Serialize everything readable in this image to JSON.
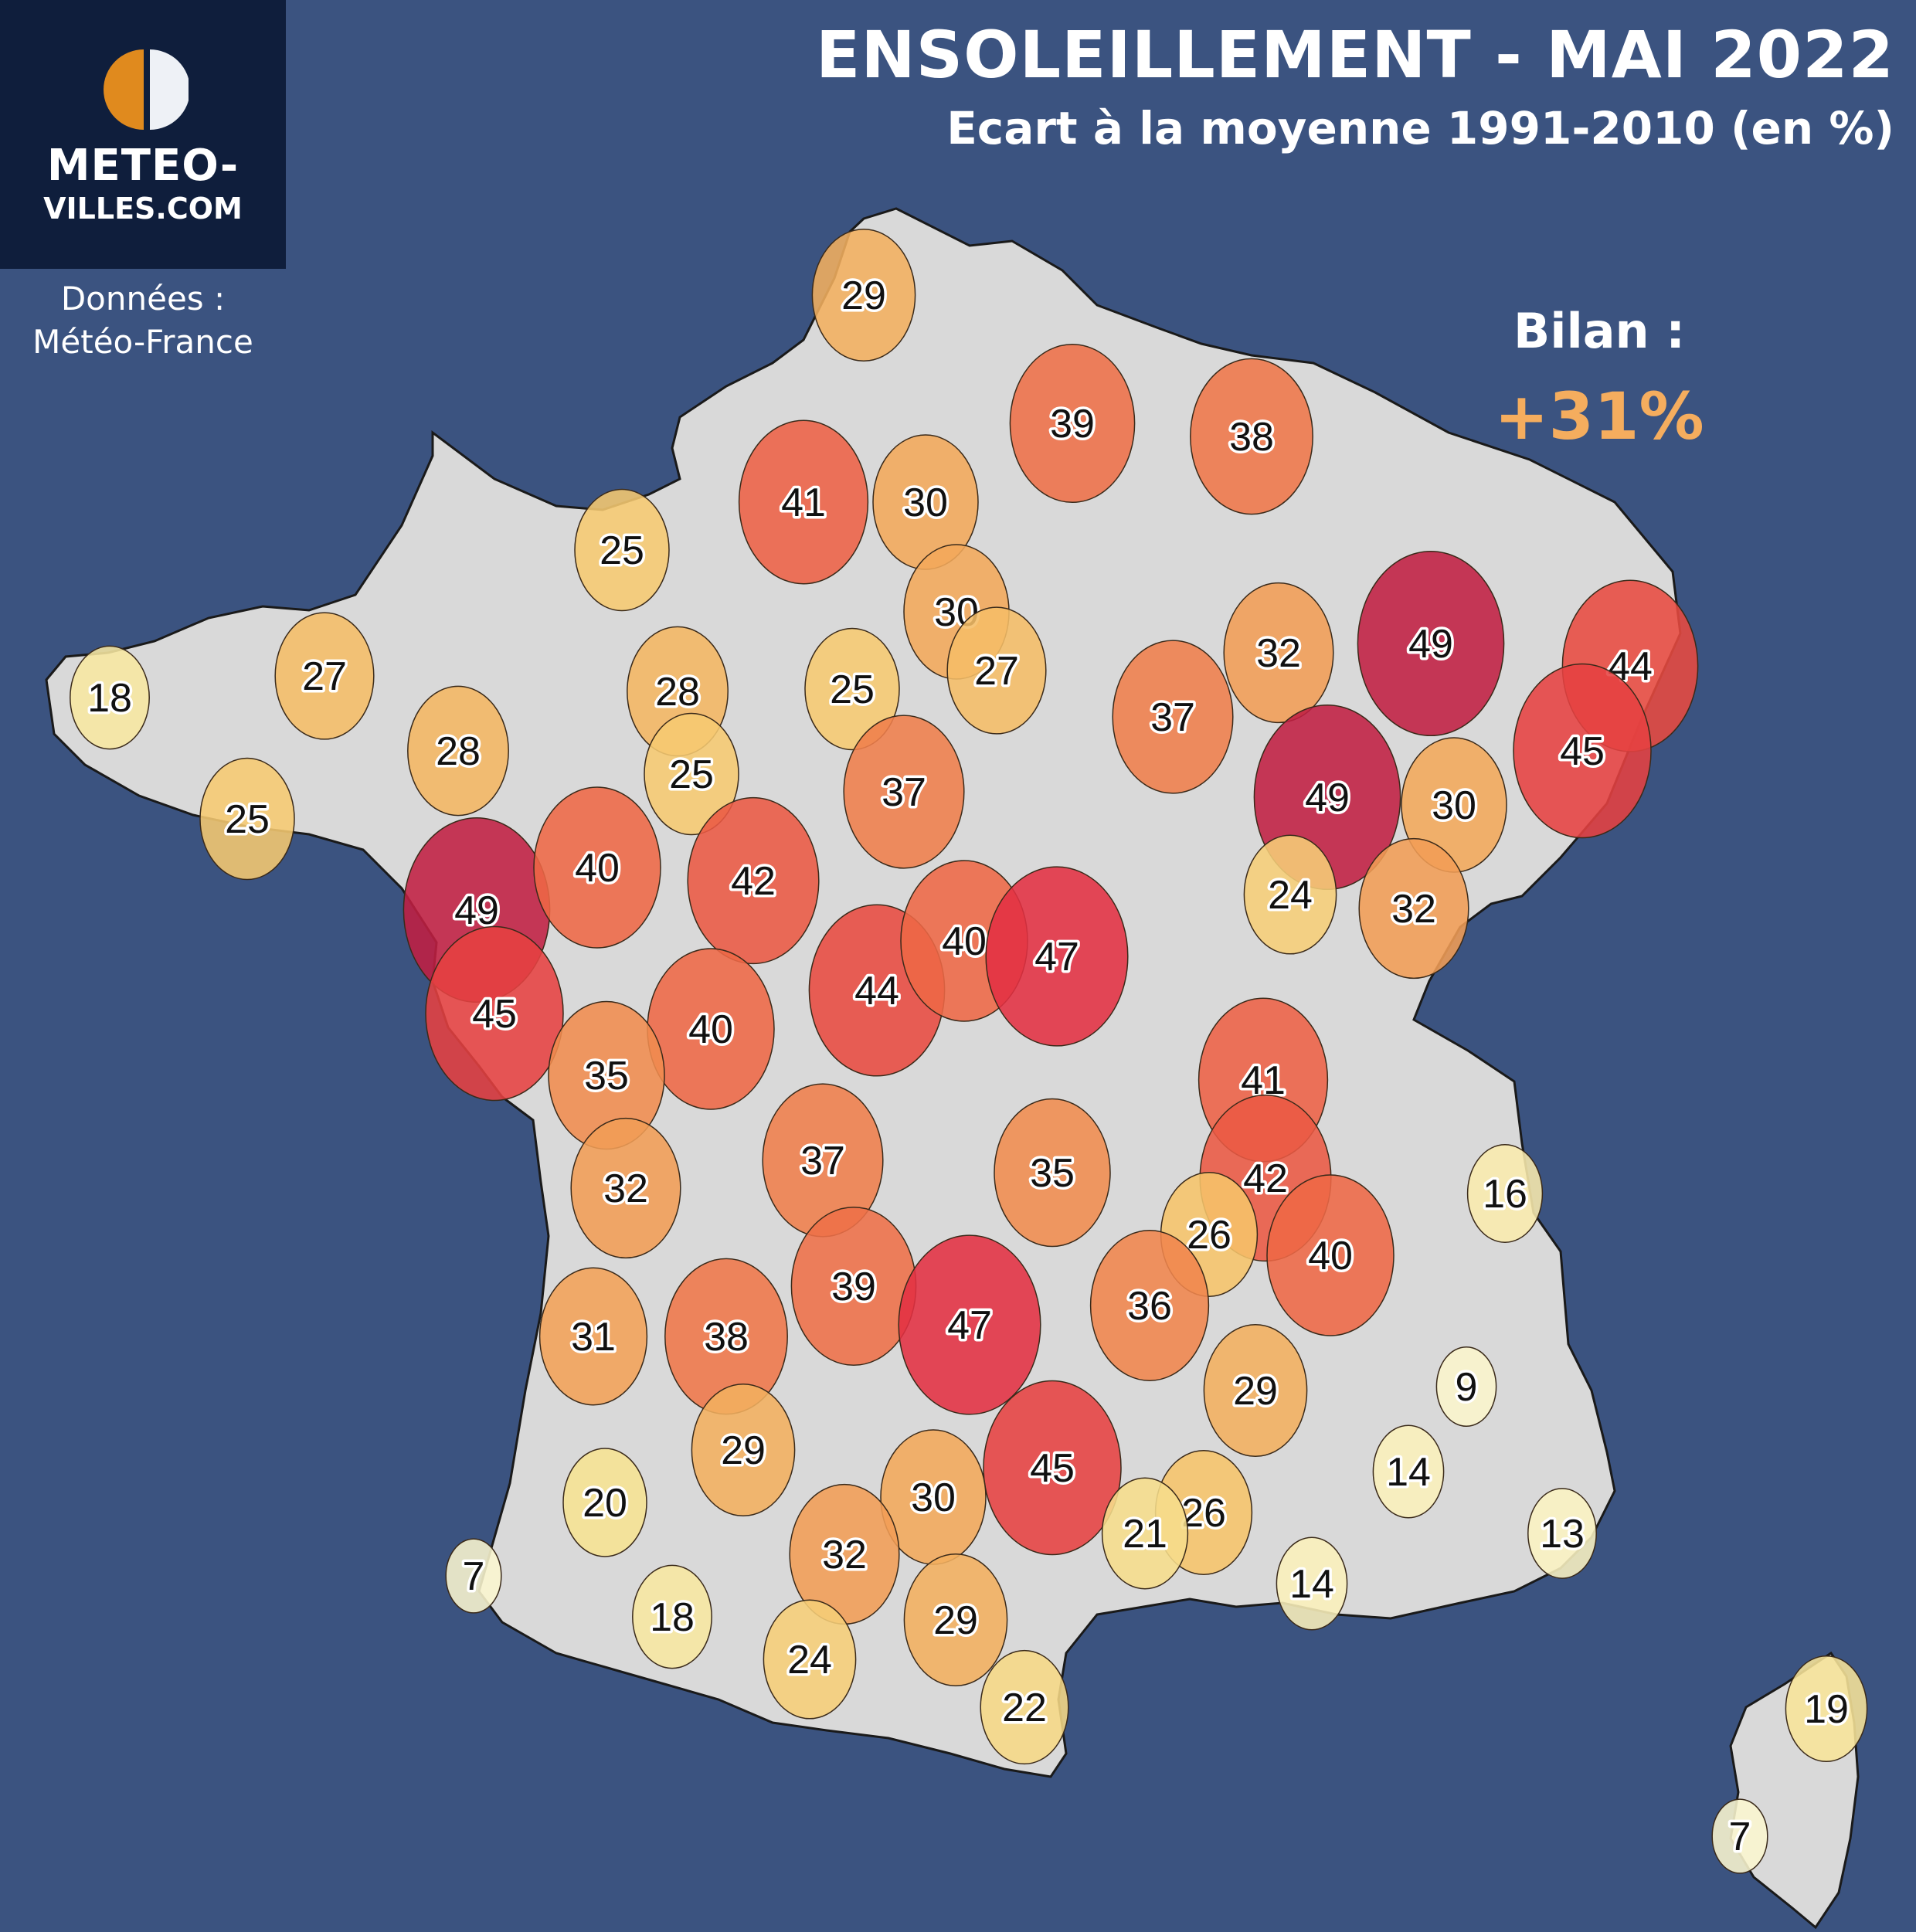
{
  "header": {
    "title": "ENSOLEILLEMENT - MAI 2022",
    "subtitle": "Ecart à la moyenne 1991-2010 (en %)"
  },
  "logo": {
    "line1": "METEO-",
    "line2": "VILLES.COM",
    "icon": "half-sun-icon",
    "colors": {
      "orange": "#e08a1e",
      "light": "#eef1f6"
    }
  },
  "source": {
    "label": "Données :",
    "name": "Météo-France"
  },
  "summary": {
    "label": "Bilan :",
    "value": "+31%"
  },
  "colors": {
    "sea": "#3b5380",
    "land": "#d9d9d9",
    "border": "#1a1a1a",
    "scale": {
      "0": "#fbf8d8",
      "20": "#f6e292",
      "28": "#f3b65e",
      "36": "#f08a4b",
      "42": "#e8523f",
      "46": "#e23040",
      "49": "#c01f42"
    }
  },
  "map_data": {
    "unit": "% deviation",
    "stations": [
      {
        "value": 29
      },
      {
        "value": 39
      },
      {
        "value": 38
      },
      {
        "value": 41
      },
      {
        "value": 30
      },
      {
        "value": 25
      },
      {
        "value": 30
      },
      {
        "value": 27
      },
      {
        "value": 18
      },
      {
        "value": 27
      },
      {
        "value": 28
      },
      {
        "value": 28
      },
      {
        "value": 25
      },
      {
        "value": 25
      },
      {
        "value": 25
      },
      {
        "value": 37
      },
      {
        "value": 37
      },
      {
        "value": 32
      },
      {
        "value": 49
      },
      {
        "value": 44
      },
      {
        "value": 45
      },
      {
        "value": 49
      },
      {
        "value": 30
      },
      {
        "value": 24
      },
      {
        "value": 32
      },
      {
        "value": 49
      },
      {
        "value": 40
      },
      {
        "value": 42
      },
      {
        "value": 45
      },
      {
        "value": 44
      },
      {
        "value": 40
      },
      {
        "value": 47
      },
      {
        "value": 40
      },
      {
        "value": 35
      },
      {
        "value": 32
      },
      {
        "value": 37
      },
      {
        "value": 35
      },
      {
        "value": 41
      },
      {
        "value": 42
      },
      {
        "value": 26
      },
      {
        "value": 40
      },
      {
        "value": 16
      },
      {
        "value": 31
      },
      {
        "value": 38
      },
      {
        "value": 39
      },
      {
        "value": 47
      },
      {
        "value": 36
      },
      {
        "value": 29
      },
      {
        "value": 9
      },
      {
        "value": 14
      },
      {
        "value": 29
      },
      {
        "value": 45
      },
      {
        "value": 30
      },
      {
        "value": 26
      },
      {
        "value": 21
      },
      {
        "value": 20
      },
      {
        "value": 7
      },
      {
        "value": 32
      },
      {
        "value": 13
      },
      {
        "value": 14
      },
      {
        "value": 18
      },
      {
        "value": 24
      },
      {
        "value": 29
      },
      {
        "value": 22
      },
      {
        "value": 19
      },
      {
        "value": 7
      }
    ]
  }
}
